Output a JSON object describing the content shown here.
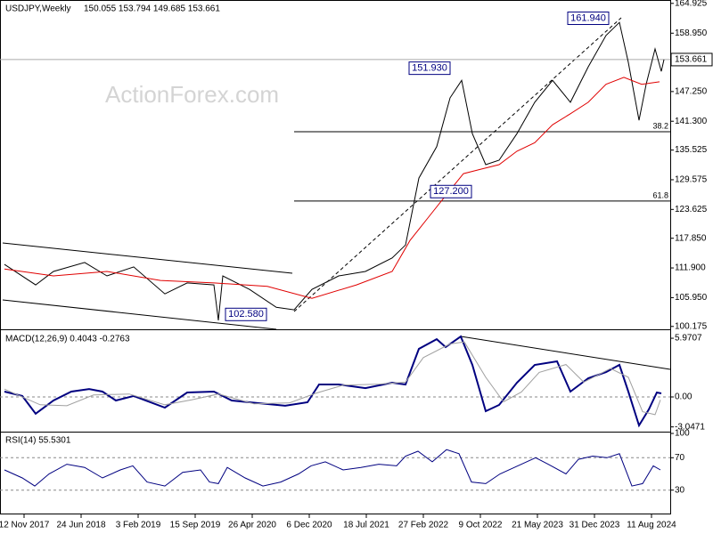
{
  "chart_data": [
    {
      "type": "line",
      "title": "USDJPY,Weekly",
      "subtitle": "150.055 153.794 149.685 153.661",
      "watermark": "ActionForex.com",
      "xlim": [
        -2.5,
        373.5
      ],
      "ylim": [
        99.6,
        165.6
      ],
      "yticks": [
        {
          "value": 164.925,
          "label": "164.925"
        },
        {
          "value": 158.95,
          "label": "158.950"
        },
        {
          "value": 147.25,
          "label": "147.250"
        },
        {
          "value": 141.3,
          "label": "141.300"
        },
        {
          "value": 135.525,
          "label": "135.525"
        },
        {
          "value": 129.575,
          "label": "129.575"
        },
        {
          "value": 123.625,
          "label": "123.625"
        },
        {
          "value": 117.85,
          "label": "117.850"
        },
        {
          "value": 111.9,
          "label": "111.900"
        },
        {
          "value": 105.95,
          "label": "105.950"
        },
        {
          "value": 100.175,
          "label": "100.175"
        }
      ],
      "last_price": {
        "value": 153.661,
        "label": "153.661"
      },
      "levels": [
        {
          "value": 139.2,
          "label": "38.2"
        },
        {
          "value": 125.3,
          "label": "61.8"
        }
      ],
      "annotations": [
        {
          "x": 340,
          "y": 161.94,
          "label": "161.940"
        },
        {
          "x": 251,
          "y": 151.93,
          "label": "151.930"
        },
        {
          "x": 263,
          "y": 127.2,
          "label": "127.200"
        },
        {
          "x": 148,
          "y": 102.58,
          "label": "102.580"
        }
      ],
      "series": [
        {
          "color": "#000000",
          "x": [
            0,
            17.5,
            27.5,
            45,
            57.5,
            72.5,
            90,
            102.5,
            117.5,
            120,
            122.5,
            137.5,
            152.5,
            162.5,
            172.5,
            187.5,
            202.5,
            217.5,
            225,
            232.5,
            242.5,
            250,
            256.5,
            262.5,
            270,
            277.5,
            287.5,
            297.5,
            307.5,
            317.5,
            327.5,
            337.5,
            345,
            350,
            356,
            360,
            365,
            368.5,
            370
          ],
          "values": [
            112.6,
            108.5,
            111.2,
            113,
            110.3,
            112.1,
            106.7,
            108.9,
            108.5,
            101.4,
            110.3,
            107.6,
            104,
            103.5,
            107.6,
            110.3,
            111.2,
            113.9,
            116.5,
            129.9,
            136.2,
            146,
            149.5,
            138.8,
            132.6,
            133.5,
            138.8,
            145.1,
            149.5,
            145.1,
            152.2,
            158.5,
            161.1,
            153.1,
            141.5,
            148.7,
            155.8,
            151.3,
            153.66
          ]
        },
        {
          "color": "#e00000",
          "x": [
            0,
            27.5,
            57.5,
            87.5,
            117.5,
            147.5,
            172.5,
            197.5,
            217.5,
            227.5,
            237.5,
            247.5,
            257.5,
            267.5,
            277.5,
            287.5,
            297.5,
            307.5,
            317.5,
            327.5,
            337.5,
            347.5,
            357.5,
            367.5
          ],
          "values": [
            111.7,
            110.3,
            111.2,
            109.4,
            108.9,
            108.2,
            105.8,
            108.5,
            111.2,
            117.4,
            121.9,
            126.4,
            130.8,
            131.7,
            132.6,
            135.3,
            137,
            140.6,
            142.8,
            145.1,
            148.7,
            150.1,
            148.7,
            149.2
          ]
        }
      ]
    },
    {
      "type": "line",
      "title": "MACD(12,26,9) 0.4043 -0.2763",
      "xlim": [
        -2.5,
        373.5
      ],
      "ylim": [
        -3.53,
        6.7
      ],
      "yticks": [
        5.9707,
        {
          "value": 0,
          "label": "0.00"
        },
        -3.0471
      ],
      "hlines": [
        0
      ],
      "series": [
        {
          "color": "#000080",
          "x": [
            0,
            10,
            17.5,
            27.5,
            37.5,
            47.5,
            55,
            62.5,
            72.5,
            90,
            102.5,
            117.5,
            127.5,
            142.5,
            157.5,
            170,
            176.5,
            187.5,
            202.5,
            217.5,
            225,
            232.5,
            242.5,
            247.5,
            256,
            262.5,
            270,
            277.5,
            287.5,
            297.5,
            310,
            317.5,
            327.5,
            337.5,
            345,
            350,
            356,
            361.5,
            366,
            368.5
          ],
          "values": [
            0.54,
            0.1,
            -1.7,
            -0.36,
            0.54,
            0.81,
            0.54,
            -0.36,
            0.1,
            -1.09,
            0.45,
            0.54,
            -0.36,
            -0.63,
            -0.9,
            -0.54,
            1.27,
            1.27,
            0.9,
            1.45,
            1.27,
            4.89,
            5.88,
            5.07,
            6.15,
            3.26,
            -1.45,
            -0.81,
            1.45,
            3.26,
            3.62,
            0.54,
            1.9,
            2.53,
            3.26,
            0.54,
            -2.9,
            -1.27,
            0.45,
            0.36
          ]
        },
        {
          "color": "#a0a0a0",
          "x": [
            0,
            20,
            35,
            50,
            70,
            90,
            105,
            120,
            140,
            160,
            175,
            190,
            210,
            225,
            235,
            250,
            258,
            270,
            280,
            290,
            300,
            315,
            325,
            340,
            350,
            358,
            365,
            368
          ],
          "values": [
            0.8,
            -0.8,
            -0.9,
            0.2,
            0.3,
            -0.8,
            -0.3,
            0.3,
            -0.7,
            -0.6,
            0.4,
            1.2,
            1.3,
            1.5,
            4,
            5.4,
            5.6,
            2,
            -0.5,
            0.5,
            2.5,
            3.3,
            1.5,
            2.9,
            2,
            -1.5,
            -1.8,
            -0.3
          ]
        }
      ]
    },
    {
      "type": "line",
      "title": "RSI(14) 55.5301",
      "xlim": [
        -2.5,
        373.5
      ],
      "ylim": [
        0,
        100
      ],
      "yticks": [
        100,
        70,
        30
      ],
      "hlines": [
        70,
        30
      ],
      "xticks": [
        {
          "value": 11,
          "label": "12 Nov 2017"
        },
        {
          "value": 43,
          "label": "24 Jun 2018"
        },
        {
          "value": 75,
          "label": "3 Feb 2019"
        },
        {
          "value": 107,
          "label": "15 Sep 2019"
        },
        {
          "value": 139,
          "label": "26 Apr 2020"
        },
        {
          "value": 171,
          "label": "6 Dec 2020"
        },
        {
          "value": 203,
          "label": "18 Jul 2021"
        },
        {
          "value": 235,
          "label": "27 Feb 2022"
        },
        {
          "value": 267,
          "label": "9 Oct 2022"
        },
        {
          "value": 299,
          "label": "21 May 2023"
        },
        {
          "value": 331,
          "label": "31 Dec 2023"
        },
        {
          "value": 363,
          "label": "11 Aug 2024"
        }
      ],
      "series": [
        {
          "color": "#000080",
          "x": [
            0,
            10,
            17,
            25,
            35,
            45,
            55,
            65,
            72,
            80,
            90,
            100,
            110,
            115,
            120,
            125,
            135,
            145,
            155,
            165,
            172,
            180,
            190,
            200,
            210,
            220,
            225,
            232,
            240,
            248,
            255,
            262,
            270,
            278,
            288,
            298,
            305,
            315,
            322,
            330,
            338,
            345,
            352,
            358,
            364,
            368
          ],
          "values": [
            55,
            45,
            35,
            50,
            62,
            58,
            45,
            55,
            60,
            40,
            35,
            52,
            55,
            40,
            38,
            58,
            45,
            35,
            40,
            50,
            60,
            65,
            55,
            58,
            62,
            60,
            72,
            78,
            65,
            80,
            75,
            40,
            38,
            50,
            60,
            70,
            62,
            50,
            68,
            72,
            70,
            75,
            35,
            38,
            60,
            55
          ]
        }
      ]
    }
  ]
}
